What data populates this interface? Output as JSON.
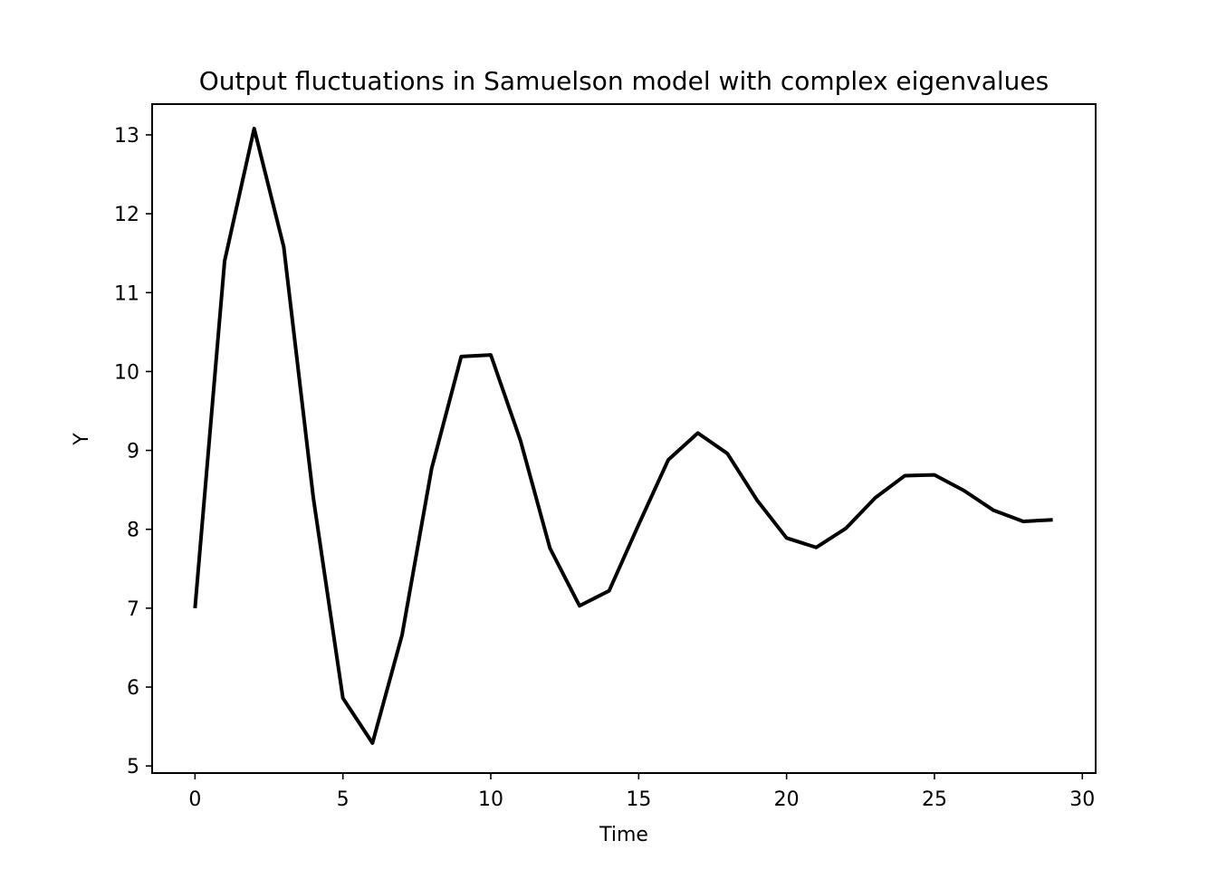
{
  "chart_data": {
    "type": "line",
    "title": "Output fluctuations in Samuelson model with complex eigenvalues",
    "xlabel": "Time",
    "ylabel": "Y",
    "xlim": [
      -1.45,
      30.45
    ],
    "ylim": [
      4.91,
      13.39
    ],
    "xticks": [
      0,
      5,
      10,
      15,
      20,
      25,
      30
    ],
    "yticks": [
      5,
      6,
      7,
      8,
      9,
      10,
      11,
      12,
      13
    ],
    "grid": false,
    "legend": "none",
    "line_color": "#000000",
    "series": [
      {
        "x": [
          0,
          1,
          2,
          3,
          4,
          5,
          6,
          7,
          8,
          9,
          10,
          11,
          12,
          13,
          14,
          15,
          16,
          17,
          18,
          19,
          20,
          21,
          22,
          23,
          24,
          25,
          26,
          27,
          28,
          29
        ],
        "values": [
          7.0,
          11.4,
          13.08,
          11.58,
          8.4,
          5.86,
          5.29,
          6.66,
          8.77,
          10.19,
          10.21,
          9.13,
          7.76,
          7.03,
          7.22,
          8.06,
          8.88,
          9.22,
          8.96,
          8.37,
          7.89,
          7.77,
          8.01,
          8.4,
          8.68,
          8.69,
          8.49,
          8.24,
          8.1,
          8.12
        ]
      }
    ]
  }
}
